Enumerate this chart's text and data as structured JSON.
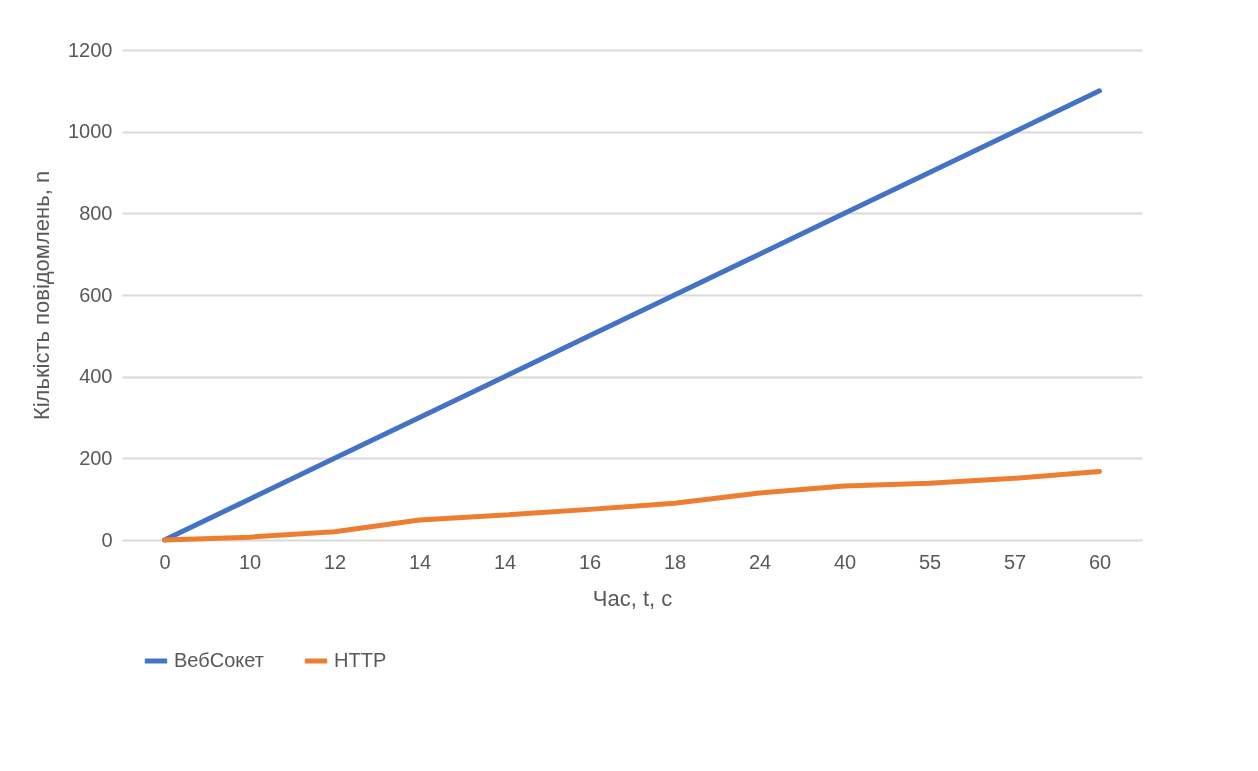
{
  "chart_data": {
    "type": "line",
    "xlabel": "Час, t, с",
    "ylabel": "Кількість повідомлень, n",
    "categories": [
      "0",
      "10",
      "12",
      "14",
      "14",
      "16",
      "18",
      "24",
      "40",
      "55",
      "57",
      "60"
    ],
    "series": [
      {
        "name": "ВебСокет",
        "color": "#4472c4",
        "values": [
          0,
          100,
          200,
          300,
          400,
          500,
          600,
          700,
          800,
          900,
          1000,
          1100
        ]
      },
      {
        "name": "HTTP",
        "color": "#ed7d31",
        "values": [
          0,
          7,
          20,
          49,
          61,
          75,
          90,
          115,
          132,
          139,
          151,
          168
        ]
      }
    ],
    "ylim": [
      0,
      1200
    ],
    "yticks": [
      0,
      200,
      400,
      600,
      800,
      1000,
      1200
    ],
    "grid": "y",
    "legend": "bottom",
    "marker": "none",
    "line_style": "solid"
  }
}
